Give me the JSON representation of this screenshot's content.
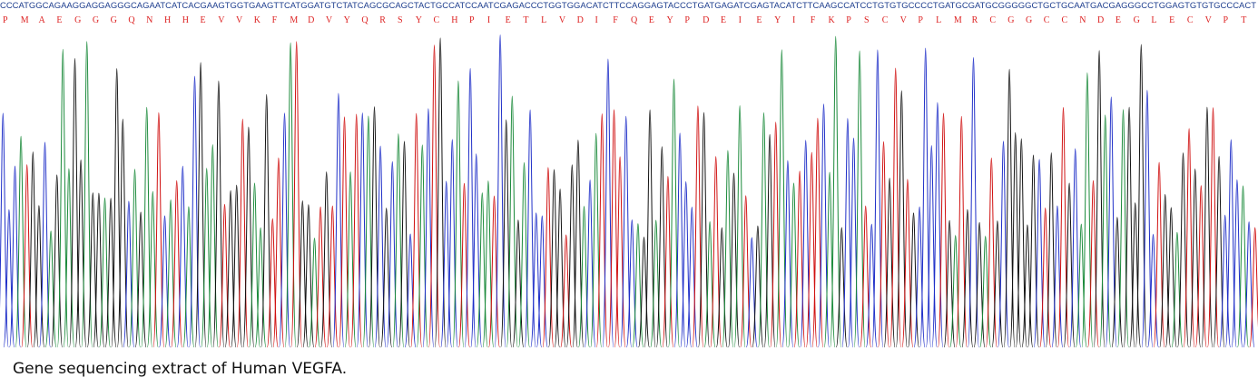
{
  "sequence": "CCCATGGCAGAAGGAGGAGGGCAGAATCATCACGAAGTGGTGAAGTTCATGGATGTCTATCAGCGCAGCTACTGCCATCCAATCGAGACCCTGGTGGACATCTTCCAGGAGTACCCTGATGAGATCGAGTACATCTTCAAGCCATCCTGTGTGCCCCTGATGCGATGCGGGGGCTGCTGCAATGACGAGGGCCTGGAGTGTGTGCCCACT",
  "amino_acids": [
    "P",
    "M",
    "A",
    "E",
    "G",
    "G",
    "G",
    "Q",
    "N",
    "H",
    "H",
    "E",
    "V",
    "V",
    "K",
    "F",
    "M",
    "D",
    "V",
    "Y",
    "Q",
    "R",
    "S",
    "Y",
    "C",
    "H",
    "P",
    "I",
    "E",
    "T",
    "L",
    "V",
    "D",
    "I",
    "F",
    "Q",
    "E",
    "Y",
    "P",
    "D",
    "E",
    "I",
    "E",
    "Y",
    "I",
    "F",
    "K",
    "P",
    "S",
    "C",
    "V",
    "P",
    "L",
    "M",
    "R",
    "C",
    "G",
    "G",
    "C",
    "C",
    "N",
    "D",
    "E",
    "G",
    "L",
    "E",
    "C",
    "V",
    "P",
    "T"
  ],
  "caption": "Gene sequencing extract of Human VEGFA."
}
